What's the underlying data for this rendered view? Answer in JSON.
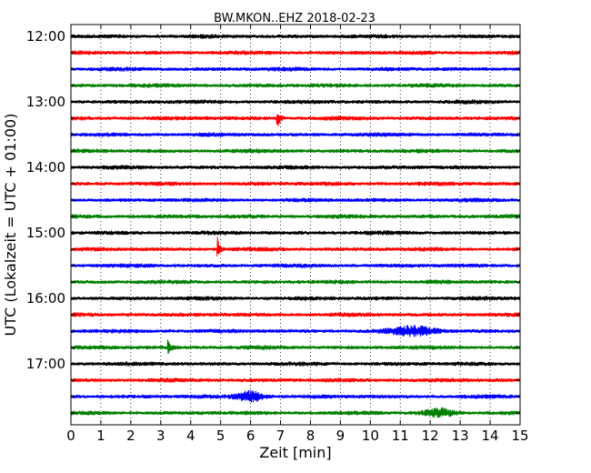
{
  "chart_data": {
    "type": "line",
    "title": "BW.MKON..EHZ 2018-02-23",
    "xlabel": "Zeit  [min]",
    "ylabel": "UTC (Lokalzeit = UTC + 01:00)",
    "xlim": [
      0,
      15
    ],
    "x_ticks": [
      "0",
      "1",
      "2",
      "3",
      "4",
      "5",
      "6",
      "7",
      "8",
      "9",
      "10",
      "11",
      "12",
      "13",
      "14",
      "15"
    ],
    "y_tick_labels": [
      "12:00",
      "13:00",
      "14:00",
      "15:00",
      "16:00",
      "17:00"
    ],
    "grid": "vertical dotted lines at each minute",
    "trace_interval_minutes": 15,
    "series_colors": [
      "#000000",
      "#ff0000",
      "#0000ff",
      "#008000"
    ],
    "series": [
      {
        "start": "12:00",
        "color": "#000000"
      },
      {
        "start": "12:15",
        "color": "#ff0000"
      },
      {
        "start": "12:30",
        "color": "#0000ff"
      },
      {
        "start": "12:45",
        "color": "#008000"
      },
      {
        "start": "13:00",
        "color": "#000000"
      },
      {
        "start": "13:15",
        "color": "#ff0000",
        "events": [
          {
            "minute": 6.9,
            "amplitude": 0.9
          }
        ]
      },
      {
        "start": "13:30",
        "color": "#0000ff"
      },
      {
        "start": "13:45",
        "color": "#008000"
      },
      {
        "start": "14:00",
        "color": "#000000"
      },
      {
        "start": "14:15",
        "color": "#ff0000"
      },
      {
        "start": "14:30",
        "color": "#0000ff"
      },
      {
        "start": "14:45",
        "color": "#008000"
      },
      {
        "start": "15:00",
        "color": "#000000"
      },
      {
        "start": "15:15",
        "color": "#ff0000",
        "events": [
          {
            "minute": 4.9,
            "amplitude": 1.0
          }
        ]
      },
      {
        "start": "15:30",
        "color": "#0000ff"
      },
      {
        "start": "15:45",
        "color": "#008000"
      },
      {
        "start": "16:00",
        "color": "#000000"
      },
      {
        "start": "16:15",
        "color": "#ff0000"
      },
      {
        "start": "16:30",
        "color": "#0000ff",
        "bursts": [
          {
            "minute": 11.5,
            "width": 1.5,
            "amplitude": 0.35
          }
        ]
      },
      {
        "start": "16:45",
        "color": "#008000",
        "events": [
          {
            "minute": 3.25,
            "amplitude": 0.6
          }
        ]
      },
      {
        "start": "17:00",
        "color": "#000000"
      },
      {
        "start": "17:15",
        "color": "#ff0000"
      },
      {
        "start": "17:30",
        "color": "#0000ff",
        "bursts": [
          {
            "minute": 6.0,
            "width": 0.9,
            "amplitude": 0.4
          }
        ]
      },
      {
        "start": "17:45",
        "color": "#008000",
        "bursts": [
          {
            "minute": 12.3,
            "width": 1.0,
            "amplitude": 0.3
          }
        ]
      }
    ]
  }
}
